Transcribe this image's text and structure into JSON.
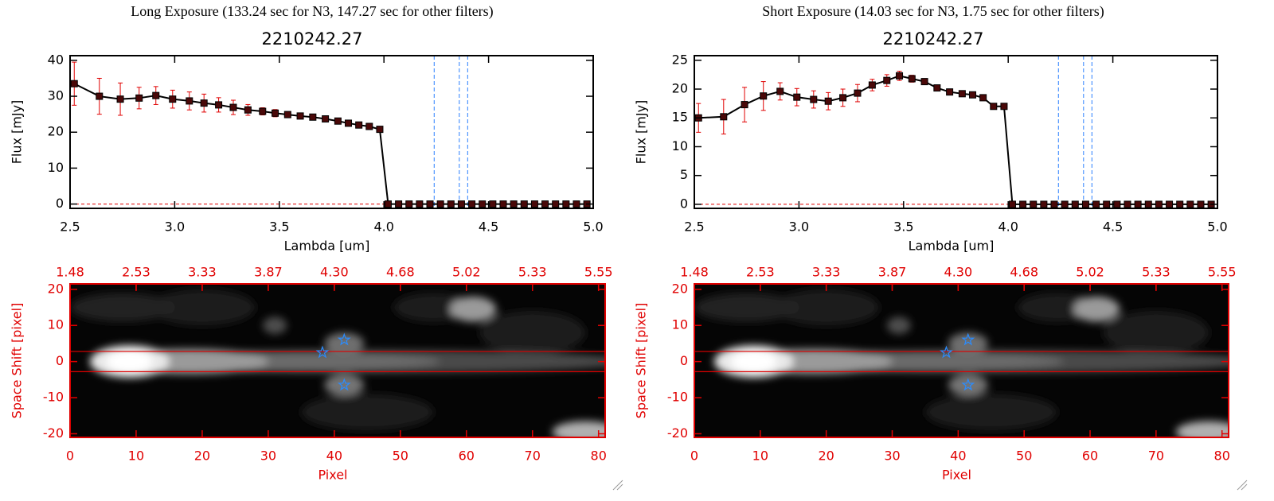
{
  "chart_data": [
    {
      "type": "line",
      "title": "Long Exposure (133.24 sec for N3, 147.27 sec for other filters)",
      "subtitle": "2210242.27",
      "xlabel": "Lambda [um]",
      "ylabel": "Flux [mJy]",
      "x": [
        2.52,
        2.64,
        2.74,
        2.83,
        2.91,
        2.99,
        3.07,
        3.14,
        3.21,
        3.28,
        3.35,
        3.42,
        3.48,
        3.54,
        3.6,
        3.66,
        3.72,
        3.78,
        3.83,
        3.88,
        3.93,
        3.98,
        4.02,
        4.07,
        4.12,
        4.17,
        4.22,
        4.27,
        4.32,
        4.37,
        4.42,
        4.47,
        4.52,
        4.57,
        4.62,
        4.67,
        4.72,
        4.77,
        4.82,
        4.87,
        4.92,
        4.97
      ],
      "series": [
        {
          "color": "#000000",
          "marker_color": "#4a0808",
          "error_color": "#e00000",
          "values": [
            33.5,
            30,
            29.2,
            29.5,
            30.2,
            29.2,
            28.7,
            28.1,
            27.6,
            26.9,
            26.2,
            25.8,
            25.3,
            24.9,
            24.5,
            24.2,
            23.7,
            23.1,
            22.5,
            22.0,
            21.6,
            20.8,
            0,
            0,
            0,
            0,
            0,
            0,
            0,
            0,
            0,
            0,
            0,
            0,
            0,
            0,
            0,
            0,
            0,
            0,
            0,
            0
          ],
          "errors": [
            6,
            5,
            4.5,
            3,
            2.5,
            2.5,
            2.5,
            2.5,
            2,
            2,
            1.5,
            1,
            1,
            0.8,
            0.8,
            0.8,
            0.8,
            0.7,
            0.7,
            0.7,
            0.7,
            0.7,
            null,
            null,
            null,
            null,
            null,
            null,
            null,
            null,
            null,
            null,
            null,
            null,
            null,
            null,
            null,
            null,
            null,
            null,
            null,
            null
          ]
        }
      ],
      "xlim": [
        2.5,
        5.0
      ],
      "xticks": [
        {
          "value": 2.5,
          "label": "2.5"
        },
        {
          "value": 3.0,
          "label": "3.0"
        },
        {
          "value": 3.5,
          "label": "3.5"
        },
        {
          "value": 4.0,
          "label": "4.0"
        },
        {
          "value": 4.5,
          "label": "4.5"
        },
        {
          "value": 5.0,
          "label": "5.0"
        }
      ],
      "ylim": [
        -1.2,
        41.3
      ],
      "yticks": [
        0,
        10,
        20,
        30,
        40
      ],
      "hlines": [
        0
      ],
      "hline_color": "#e00000",
      "vlines": [
        4.24,
        4.36,
        4.4
      ],
      "vline_color": "#2a7fff"
    },
    {
      "type": "image",
      "xlabel": "Pixel",
      "ylabel": "Space Shift [pixel]",
      "color": "#e00000",
      "xlim": [
        0,
        81
      ],
      "xticks": [
        0,
        10,
        20,
        30,
        40,
        50,
        60,
        70,
        80
      ],
      "ylim": [
        -21,
        21.5
      ],
      "yticks": [
        -20,
        -10,
        0,
        10,
        20
      ],
      "x2ticks": [
        {
          "value": 0,
          "label": "1.48"
        },
        {
          "value": 10,
          "label": "2.53"
        },
        {
          "value": 20,
          "label": "3.33"
        },
        {
          "value": 30,
          "label": "3.87"
        },
        {
          "value": 40,
          "label": "4.30"
        },
        {
          "value": 50,
          "label": "4.68"
        },
        {
          "value": 60,
          "label": "5.02"
        },
        {
          "value": 70,
          "label": "5.33"
        },
        {
          "value": 80,
          "label": "5.55"
        }
      ],
      "hlines": [
        2.8,
        -2.8
      ],
      "markers": {
        "x": [
          41.5,
          41.5,
          38.2
        ],
        "y": [
          6,
          -6.5,
          2.5
        ],
        "color": "#2a8cff"
      }
    },
    {
      "type": "line",
      "title": "Short Exposure (14.03 sec for N3, 1.75 sec for other filters)",
      "subtitle": "2210242.27",
      "xlabel": "Lambda [um]",
      "ylabel": "Flux [mJy]",
      "x": [
        2.52,
        2.64,
        2.74,
        2.83,
        2.91,
        2.99,
        3.07,
        3.14,
        3.21,
        3.28,
        3.35,
        3.42,
        3.48,
        3.54,
        3.6,
        3.66,
        3.72,
        3.78,
        3.83,
        3.88,
        3.93,
        3.98,
        4.02,
        4.07,
        4.12,
        4.17,
        4.22,
        4.27,
        4.32,
        4.37,
        4.42,
        4.47,
        4.52,
        4.57,
        4.62,
        4.67,
        4.72,
        4.77,
        4.82,
        4.87,
        4.92,
        4.97
      ],
      "series": [
        {
          "color": "#000000",
          "marker_color": "#4a0808",
          "error_color": "#e00000",
          "values": [
            15.0,
            15.2,
            17.3,
            18.8,
            19.6,
            18.6,
            18.2,
            17.9,
            18.5,
            19.3,
            20.7,
            21.5,
            22.3,
            21.8,
            21.3,
            20.2,
            19.5,
            19.2,
            19.0,
            18.5,
            17.0,
            17.0,
            0,
            0,
            0,
            0,
            0,
            0,
            0,
            0,
            0,
            0,
            0,
            0,
            0,
            0,
            0,
            0,
            0,
            0,
            0,
            0
          ],
          "errors": [
            2.5,
            3,
            3,
            2.5,
            1.5,
            1.5,
            1.5,
            1.5,
            1.5,
            1.5,
            1,
            1,
            0.8,
            0.6,
            0.5,
            0.5,
            0.5,
            0.5,
            0.5,
            0.5,
            0.5,
            0.5,
            null,
            null,
            null,
            null,
            null,
            null,
            null,
            null,
            null,
            null,
            null,
            null,
            null,
            null,
            null,
            null,
            null,
            null,
            null,
            null
          ]
        }
      ],
      "xlim": [
        2.5,
        5.0
      ],
      "xticks": [
        {
          "value": 2.5,
          "label": "2.5"
        },
        {
          "value": 3.0,
          "label": "3.0"
        },
        {
          "value": 3.5,
          "label": "3.5"
        },
        {
          "value": 4.0,
          "label": "4.0"
        },
        {
          "value": 4.5,
          "label": "4.5"
        },
        {
          "value": 5.0,
          "label": "5.0"
        }
      ],
      "ylim": [
        -0.7,
        25.8
      ],
      "yticks": [
        0,
        5,
        10,
        15,
        20,
        25
      ],
      "hlines": [
        0
      ],
      "hline_color": "#e00000",
      "vlines": [
        4.24,
        4.36,
        4.4
      ],
      "vline_color": "#2a7fff"
    },
    {
      "type": "image",
      "xlabel": "Pixel",
      "ylabel": "Space Shift [pixel]",
      "color": "#e00000",
      "xlim": [
        0,
        81
      ],
      "xticks": [
        0,
        10,
        20,
        30,
        40,
        50,
        60,
        70,
        80
      ],
      "ylim": [
        -21,
        21.5
      ],
      "yticks": [
        -20,
        -10,
        0,
        10,
        20
      ],
      "x2ticks": [
        {
          "value": 0,
          "label": "1.48"
        },
        {
          "value": 10,
          "label": "2.53"
        },
        {
          "value": 20,
          "label": "3.33"
        },
        {
          "value": 30,
          "label": "3.87"
        },
        {
          "value": 40,
          "label": "4.30"
        },
        {
          "value": 50,
          "label": "4.68"
        },
        {
          "value": 60,
          "label": "5.02"
        },
        {
          "value": 70,
          "label": "5.33"
        },
        {
          "value": 80,
          "label": "5.55"
        }
      ],
      "hlines": [
        2.8,
        -2.8
      ],
      "markers": {
        "x": [
          41.5,
          41.5,
          38.2
        ],
        "y": [
          6,
          -6.5,
          2.5
        ],
        "color": "#2a8cff"
      }
    }
  ]
}
